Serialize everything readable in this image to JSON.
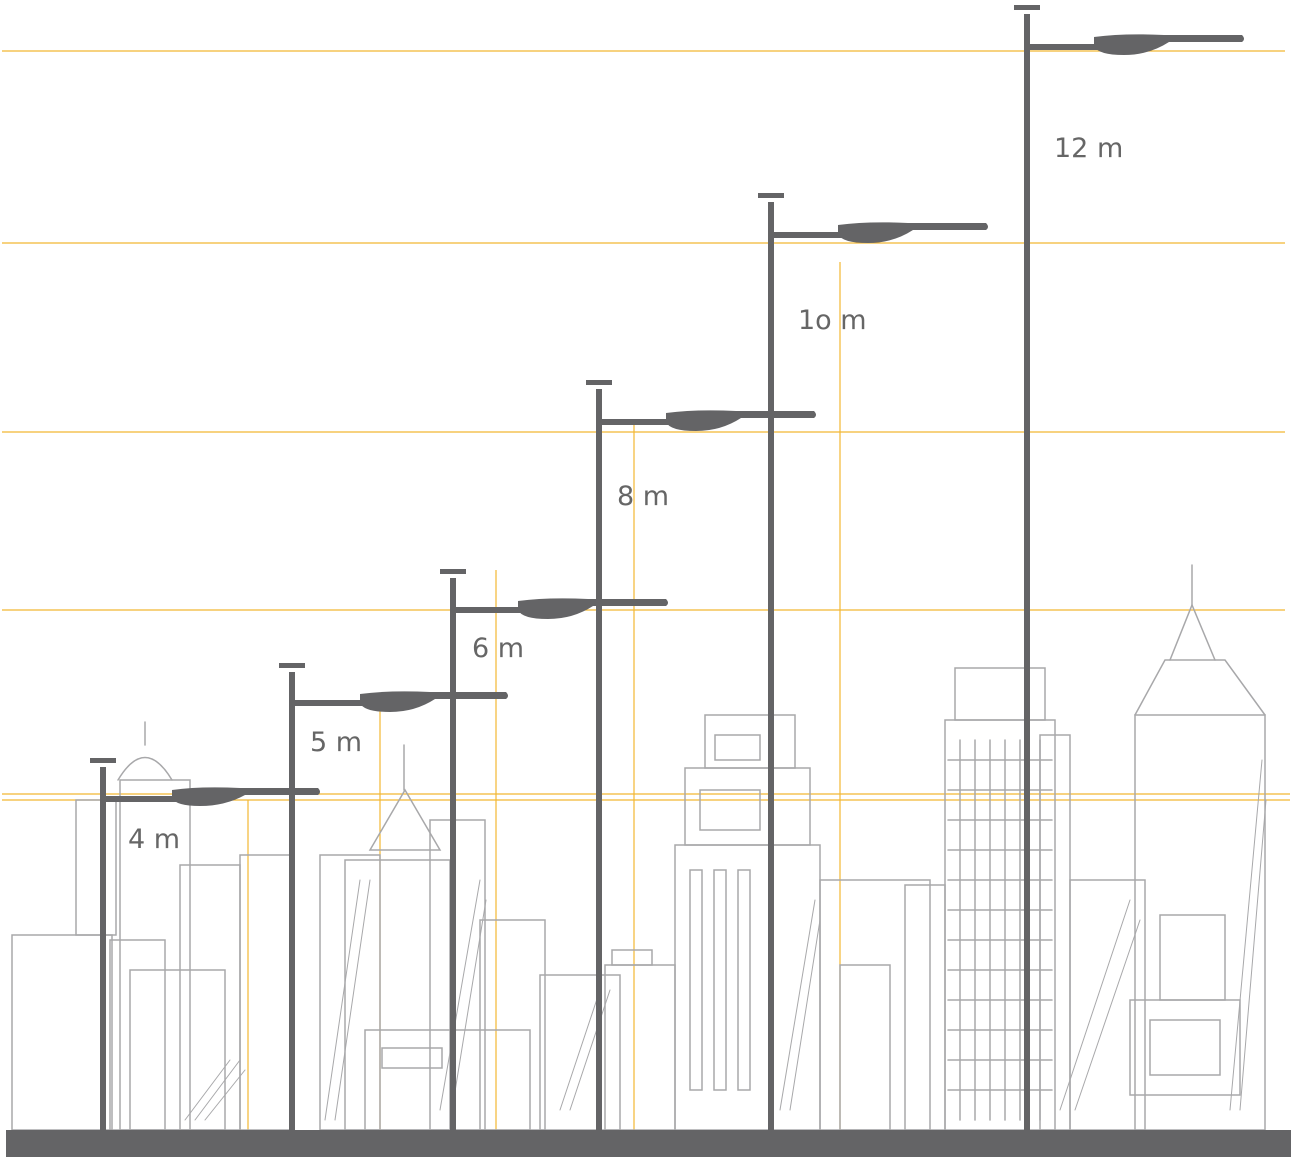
{
  "diagram": {
    "subject": "street lamp pole heights over city skyline",
    "colors": {
      "pole": "#646466",
      "guide_line": "#f2b733",
      "skyline_sketch": "#a8a8aa",
      "ground": "#646466",
      "label": "#666666"
    },
    "poles": [
      {
        "label": "4 m"
      },
      {
        "label": "5 m"
      },
      {
        "label": "6 m"
      },
      {
        "label": "8 m"
      },
      {
        "label": "1o m"
      },
      {
        "label": "12 m"
      }
    ]
  }
}
